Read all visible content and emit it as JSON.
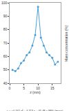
{
  "chart_data": {
    "type": "line",
    "x_label": "z (mm)",
    "y_label": "Mass concentration (%)",
    "annotation": "c = −0.162 x² + 4.713 x + 45.48 ± 98% (mass)",
    "x": [
      1,
      2,
      3,
      4,
      5,
      6,
      7,
      8,
      9,
      10,
      11,
      12,
      13,
      14,
      15,
      16,
      17
    ],
    "values": [
      50,
      49,
      51,
      55,
      57,
      61,
      63,
      68,
      76,
      97,
      74,
      68,
      63,
      61,
      59,
      54,
      56
    ],
    "color": "#4a9fd8",
    "marker": "circle",
    "xlim": [
      0,
      18
    ],
    "xticks": [
      0,
      5,
      10,
      15
    ],
    "ylim": [
      40,
      100
    ],
    "yticks": [
      40,
      50,
      60,
      70,
      80,
      90,
      100
    ],
    "grid": false
  }
}
